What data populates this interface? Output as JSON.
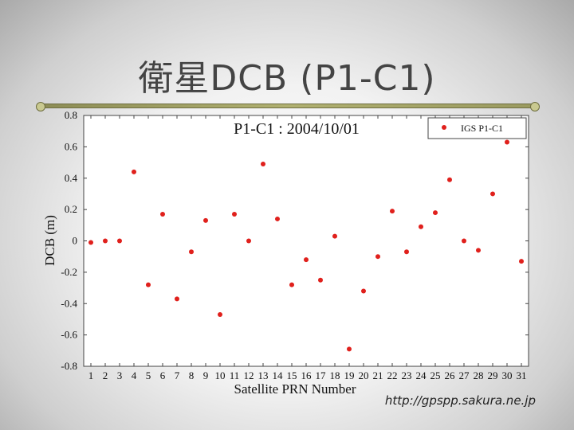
{
  "slide": {
    "title": "衛星DCB (P1-C1)",
    "watermark": "http://gpspp.sakura.ne.jp"
  },
  "chart_data": {
    "type": "scatter",
    "title": "P1-C1 : 2004/10/01",
    "xlabel": "Satellite PRN Number",
    "ylabel": "DCB (m)",
    "xlim": [
      0.5,
      31.5
    ],
    "ylim": [
      -0.8,
      0.8
    ],
    "yticks": [
      0.8,
      0.6,
      0.4,
      0.2,
      0,
      -0.2,
      -0.4,
      -0.6,
      -0.8
    ],
    "ytick_labels": [
      "0.8",
      "0.6",
      "0.4",
      "0.2",
      "0",
      "-0.2",
      "-0.4",
      "-0.6",
      "-0.8"
    ],
    "xticks": [
      1,
      2,
      3,
      4,
      5,
      6,
      7,
      8,
      9,
      10,
      11,
      12,
      13,
      14,
      15,
      16,
      17,
      18,
      19,
      20,
      21,
      22,
      23,
      24,
      25,
      26,
      27,
      28,
      29,
      30,
      31
    ],
    "legend": {
      "entries": [
        "IGS P1-C1"
      ],
      "placement": "top-right"
    },
    "grid": false,
    "marker_color": "#e0201c",
    "series": [
      {
        "name": "IGS P1-C1",
        "x": [
          1,
          2,
          3,
          4,
          5,
          6,
          7,
          8,
          9,
          10,
          11,
          12,
          13,
          14,
          15,
          16,
          17,
          18,
          19,
          20,
          21,
          22,
          23,
          24,
          25,
          26,
          27,
          28,
          29,
          30,
          31
        ],
        "y": [
          -0.01,
          0.0,
          0.0,
          0.44,
          -0.28,
          0.17,
          -0.37,
          -0.07,
          0.13,
          -0.47,
          0.17,
          0.0,
          0.49,
          0.14,
          -0.28,
          -0.12,
          -0.25,
          0.03,
          -0.69,
          -0.32,
          -0.1,
          0.19,
          -0.07,
          0.09,
          0.18,
          0.39,
          0.0,
          -0.06,
          0.3,
          0.63,
          -0.13
        ]
      }
    ]
  }
}
